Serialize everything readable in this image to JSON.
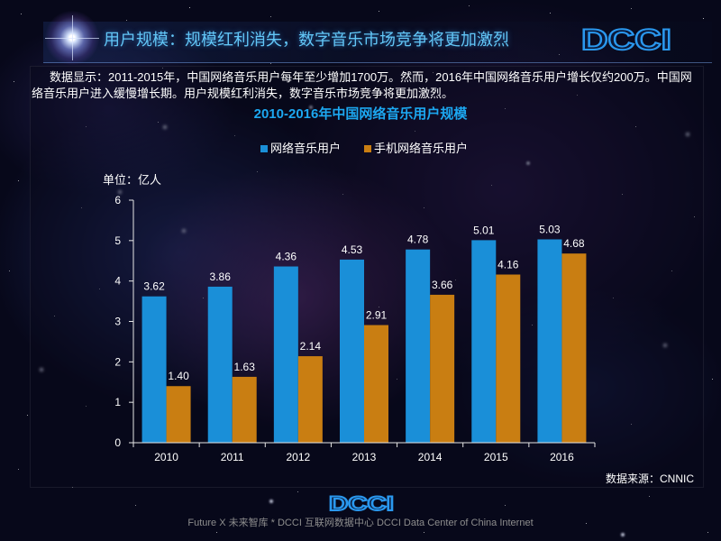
{
  "header": {
    "title": "用户规模：规模红利消失，数字音乐市场竞争将更加激烈",
    "logo_text": "DCCI"
  },
  "summary": {
    "text": "数据显示：2011-2015年，中国网络音乐用户每年至少增加1700万。然而，2016年中国网络音乐用户增长仅约200万。中国网络音乐用户进入缓慢增长期。用户规模红利消失，数字音乐市场竞争将更加激烈。"
  },
  "chart_data": {
    "type": "bar",
    "title": "2010-2016年中国网络音乐用户规模",
    "ylabel": "单位：亿人",
    "categories": [
      "2010",
      "2011",
      "2012",
      "2013",
      "2014",
      "2015",
      "2016"
    ],
    "series": [
      {
        "name": "网络音乐用户",
        "color": "#1a8fd8",
        "values": [
          3.62,
          3.86,
          4.36,
          4.53,
          4.78,
          5.01,
          5.03
        ],
        "labels": [
          "3.62",
          "3.86",
          "4.36",
          "4.53",
          "4.78",
          "5.01",
          "5.03"
        ]
      },
      {
        "name": "手机网络音乐用户",
        "color": "#c97e12",
        "values": [
          1.4,
          1.63,
          2.14,
          2.91,
          3.66,
          4.16,
          4.68
        ],
        "labels": [
          "1.40",
          "1.63",
          "2.14",
          "2.91",
          "3.66",
          "4.16",
          "4.68"
        ]
      }
    ],
    "ylim": [
      0,
      6
    ],
    "yticks": [
      0,
      1,
      2,
      3,
      4,
      5,
      6
    ],
    "grid": false
  },
  "source_note": "数据来源：CNNIC",
  "footer": {
    "logo_text": "DCCI",
    "text": "Future X 未来智库 * DCCI 互联网数据中心 DCCI Data Center of China Internet"
  }
}
